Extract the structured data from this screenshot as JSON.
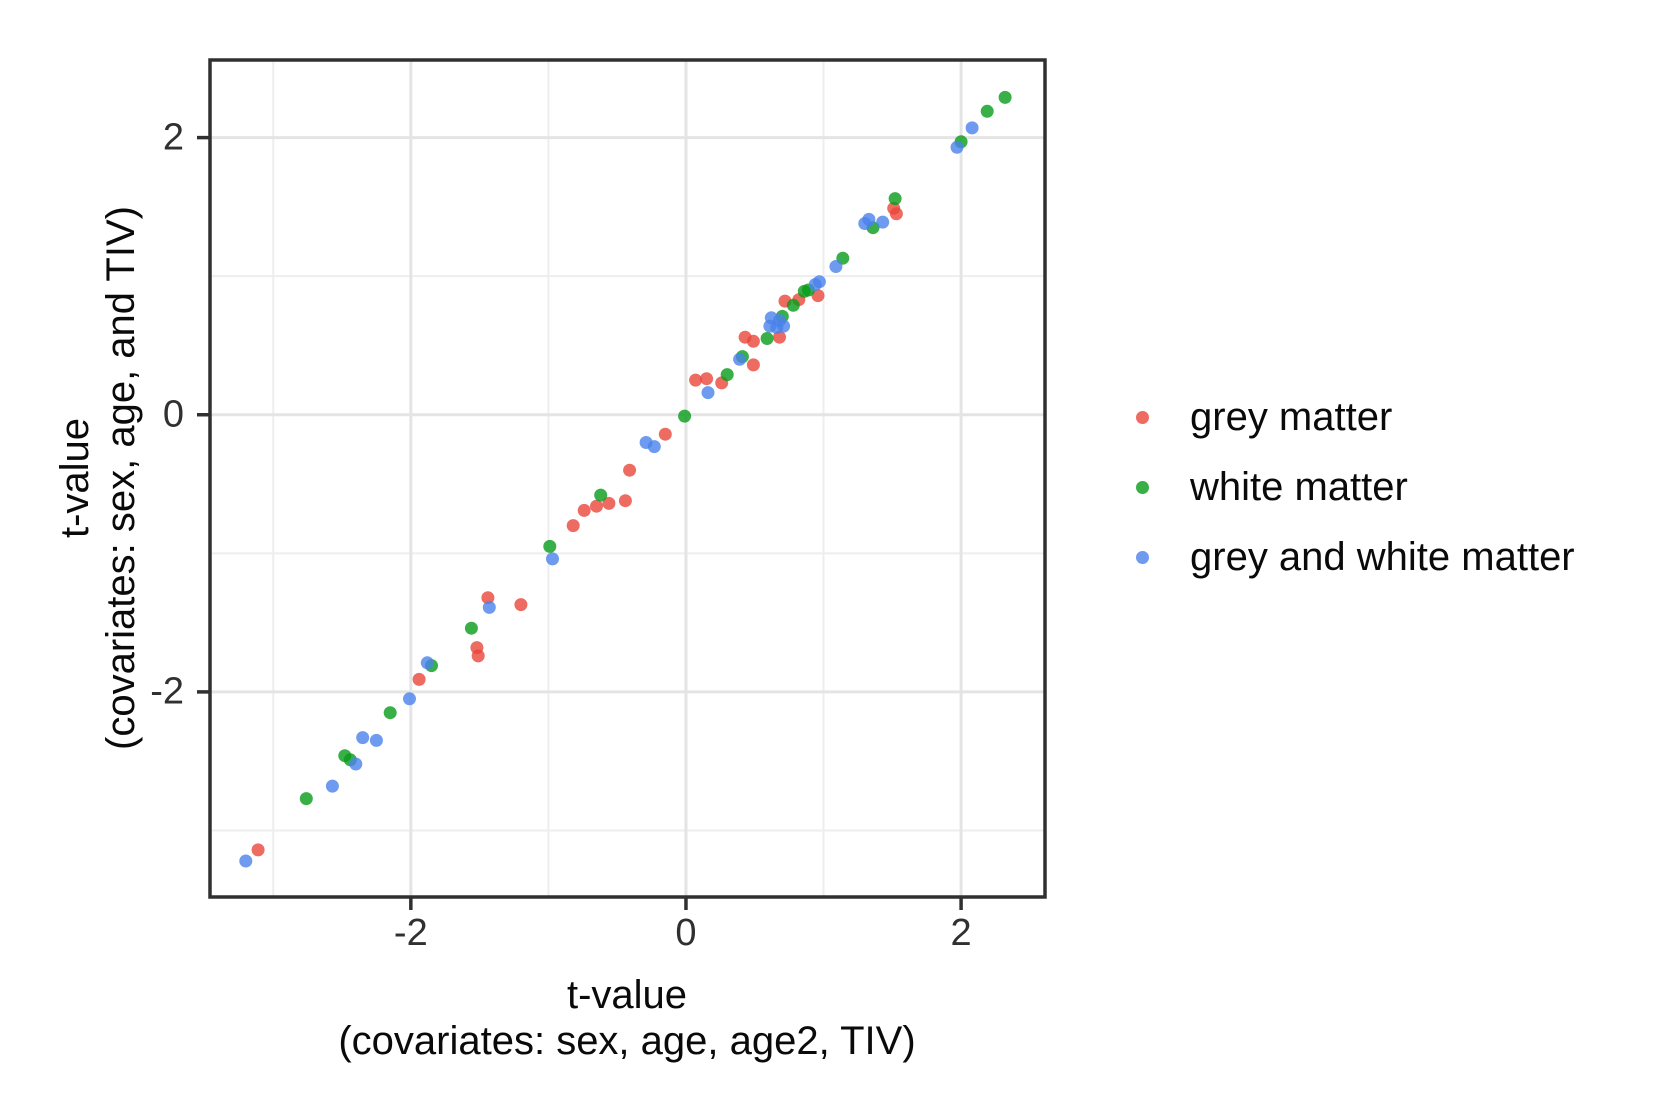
{
  "figure": {
    "background": "#ffffff"
  },
  "chart_data": {
    "type": "scatter",
    "title": "",
    "xlabel_line1": "t-value",
    "xlabel_line2": "(covariates: sex, age, age2, TIV)",
    "ylabel_line1": "t-value",
    "ylabel_line2": "(covariates: sex, age, and TIV)",
    "xlim": [
      -3.46,
      2.61
    ],
    "ylim": [
      -3.48,
      2.56
    ],
    "grid": true,
    "legend_position": "right",
    "x_major_ticks": [
      -2,
      0,
      2
    ],
    "y_major_ticks": [
      -2,
      0,
      2
    ],
    "x_minor_gridlines": [
      -3,
      -1,
      1
    ],
    "y_minor_gridlines": [
      -3,
      -1,
      1
    ],
    "tick_labels": {
      "x": [
        "-2",
        "0",
        "2"
      ],
      "y": [
        "-2",
        "0",
        "2"
      ]
    },
    "style": {
      "panel_background": "#ffffff",
      "grid_major_color": "#e4e4e4",
      "grid_minor_color": "#eeeeee",
      "panel_border_color": "#303030",
      "tick_label_color": "#303030",
      "point_radius": 6.5,
      "point_opacity": 0.8
    },
    "series": [
      {
        "name": "grey matter",
        "color": "#ea463b",
        "points": [
          [
            -3.11,
            -3.14
          ],
          [
            -1.94,
            -1.91
          ],
          [
            -1.52,
            -1.68
          ],
          [
            -1.51,
            -1.74
          ],
          [
            -1.44,
            -1.32
          ],
          [
            -1.2,
            -1.37
          ],
          [
            -0.82,
            -0.8
          ],
          [
            -0.74,
            -0.69
          ],
          [
            -0.65,
            -0.66
          ],
          [
            -0.56,
            -0.64
          ],
          [
            -0.44,
            -0.62
          ],
          [
            -0.41,
            -0.4
          ],
          [
            -0.15,
            -0.14
          ],
          [
            0.07,
            0.25
          ],
          [
            0.15,
            0.26
          ],
          [
            0.26,
            0.23
          ],
          [
            0.43,
            0.56
          ],
          [
            0.49,
            0.53
          ],
          [
            0.49,
            0.36
          ],
          [
            0.68,
            0.56
          ],
          [
            0.72,
            0.82
          ],
          [
            0.82,
            0.83
          ],
          [
            0.96,
            0.86
          ],
          [
            1.51,
            1.49
          ],
          [
            1.53,
            1.45
          ]
        ]
      },
      {
        "name": "white matter",
        "color": "#089c19",
        "points": [
          [
            -2.76,
            -2.77
          ],
          [
            -2.48,
            -2.46
          ],
          [
            -2.44,
            -2.49
          ],
          [
            -2.15,
            -2.15
          ],
          [
            -1.85,
            -1.81
          ],
          [
            -1.56,
            -1.54
          ],
          [
            -0.99,
            -0.95
          ],
          [
            -0.62,
            -0.58
          ],
          [
            -0.01,
            -0.01
          ],
          [
            0.3,
            0.29
          ],
          [
            0.41,
            0.42
          ],
          [
            0.59,
            0.55
          ],
          [
            0.7,
            0.71
          ],
          [
            0.78,
            0.79
          ],
          [
            0.86,
            0.89
          ],
          [
            0.89,
            0.9
          ],
          [
            1.14,
            1.13
          ],
          [
            1.36,
            1.35
          ],
          [
            1.52,
            1.56
          ],
          [
            2.0,
            1.97
          ],
          [
            2.19,
            2.19
          ],
          [
            2.32,
            2.29
          ]
        ]
      },
      {
        "name": "grey and white matter",
        "color": "#4a82eb",
        "points": [
          [
            -3.2,
            -3.22
          ],
          [
            -2.57,
            -2.68
          ],
          [
            -2.4,
            -2.52
          ],
          [
            -2.35,
            -2.33
          ],
          [
            -2.25,
            -2.35
          ],
          [
            -2.01,
            -2.05
          ],
          [
            -1.88,
            -1.79
          ],
          [
            -1.43,
            -1.39
          ],
          [
            -0.97,
            -1.04
          ],
          [
            -0.29,
            -0.2
          ],
          [
            -0.23,
            -0.23
          ],
          [
            0.16,
            0.16
          ],
          [
            0.39,
            0.4
          ],
          [
            0.61,
            0.64
          ],
          [
            0.62,
            0.7
          ],
          [
            0.66,
            0.63
          ],
          [
            0.68,
            0.68
          ],
          [
            0.71,
            0.64
          ],
          [
            0.94,
            0.94
          ],
          [
            0.97,
            0.96
          ],
          [
            1.09,
            1.07
          ],
          [
            1.3,
            1.38
          ],
          [
            1.33,
            1.41
          ],
          [
            1.43,
            1.39
          ],
          [
            1.97,
            1.93
          ],
          [
            2.08,
            2.07
          ]
        ]
      }
    ]
  }
}
